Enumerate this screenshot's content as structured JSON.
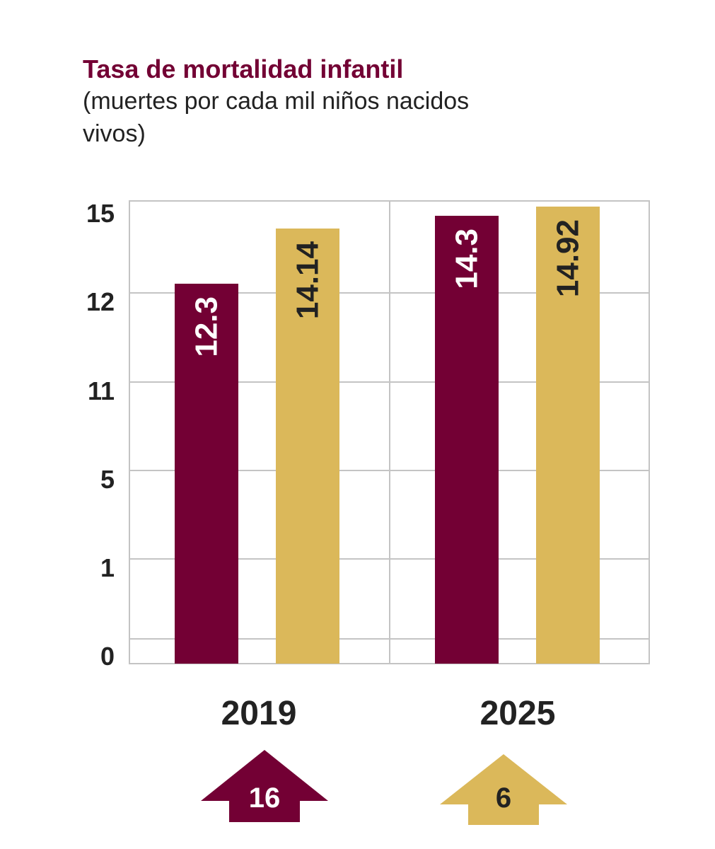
{
  "chart_data": {
    "type": "bar",
    "title": "Tasa de mortalidad infantil",
    "subtitle": "(muertes por cada mil niños nacidos vivos)",
    "categories": [
      "2019",
      "2025"
    ],
    "series": [
      {
        "color": "#730034",
        "values": [
          12.3,
          14.3
        ]
      },
      {
        "color": "#dbb85a",
        "values": [
          14.14,
          14.92
        ]
      }
    ],
    "value_labels": [
      [
        "12.3",
        "14.14"
      ],
      [
        "14.3",
        "14.92"
      ]
    ],
    "y_ticks": [
      {
        "label": "15",
        "level": 15
      },
      {
        "label": "12",
        "level": 12
      },
      {
        "label": "11",
        "level": 11
      },
      {
        "label": "5",
        "level": 5
      },
      {
        "label": "1",
        "level": 1
      },
      {
        "label": "0",
        "level": 0
      }
    ],
    "ylim": [
      0,
      15
    ],
    "grid": true,
    "badges": [
      {
        "label": "16",
        "color": "#730034",
        "text_color": "#ffffff"
      },
      {
        "label": "6",
        "color": "#dbb85a",
        "text_color": "#222222"
      }
    ]
  }
}
